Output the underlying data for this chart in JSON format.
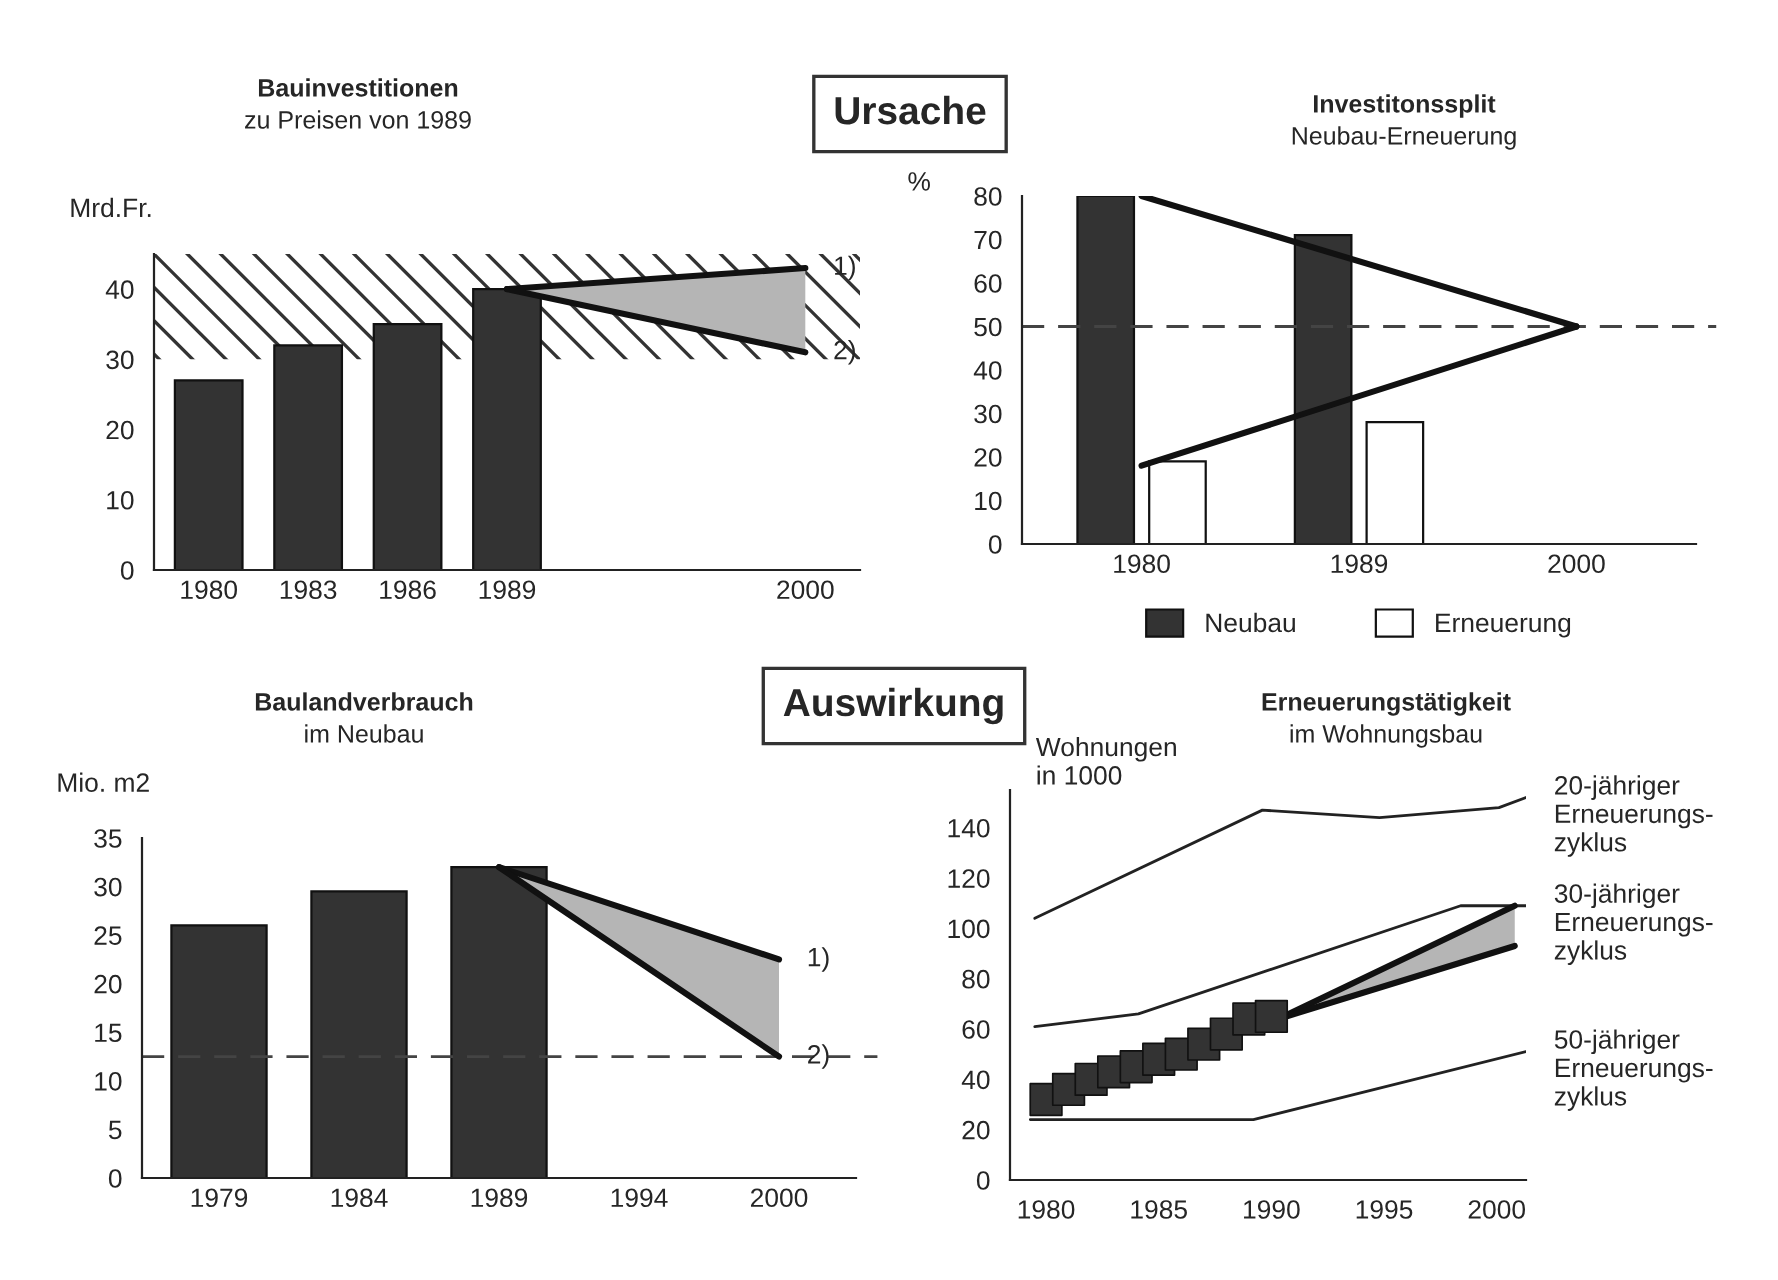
{
  "chart_data": [
    {
      "type": "bar",
      "title": "Bauinvestitionen",
      "subtitle": "zu Preisen von 1989",
      "ylabel": "Mrd.Fr.",
      "annotations": [
        "Ursache"
      ],
      "categories": [
        "1980",
        "1983",
        "1986",
        "1989",
        null,
        null,
        "2000"
      ],
      "series": [
        {
          "type": "bar",
          "color": "#333333",
          "values": [
            27,
            32,
            35,
            40,
            null,
            null,
            null
          ]
        },
        {
          "type": "line",
          "name": "1)",
          "color": "#111111",
          "values": [
            null,
            null,
            null,
            40,
            null,
            null,
            43
          ],
          "lower": [
            null,
            null,
            null,
            40,
            null,
            null,
            31
          ],
          "upper": [
            null,
            null,
            null,
            40,
            null,
            null,
            43
          ]
        },
        {
          "type": "line",
          "name": "2)",
          "color": "#111111",
          "values": [
            null,
            null,
            null,
            40,
            null,
            null,
            31
          ]
        }
      ],
      "bands": [
        {
          "axis": "y",
          "from": 30,
          "to": 45,
          "color": "#333333"
        }
      ],
      "ylim": [
        0,
        45
      ],
      "yticks": [
        0,
        10,
        20,
        30,
        40
      ]
    },
    {
      "type": "bar",
      "title": "Investitonssplit",
      "subtitle": "Neubau-Erneuerung",
      "ylabel": "%",
      "categories": [
        "1980",
        "1989",
        "2000"
      ],
      "series": [
        {
          "type": "bar",
          "name": "Neubau",
          "color": "#333333",
          "values": [
            80,
            71,
            null
          ]
        },
        {
          "type": "bar",
          "name": "Erneuerung",
          "color": "#ffffff",
          "values": [
            19,
            28,
            null
          ]
        },
        {
          "type": "line",
          "color": "#111111",
          "values": [
            80,
            null,
            50
          ]
        },
        {
          "type": "line",
          "color": "#111111",
          "values": [
            18,
            null,
            50
          ]
        }
      ],
      "ref_lines": [
        {
          "axis": "y",
          "value": 50,
          "color": "#444444",
          "line_style": "dashed"
        }
      ],
      "legend": "bottom",
      "ylim": [
        0,
        80
      ],
      "yticks": [
        0,
        10,
        20,
        30,
        40,
        50,
        60,
        70,
        80
      ]
    },
    {
      "type": "bar",
      "title": "Baulandverbrauch",
      "subtitle": "im Neubau",
      "ylabel": "Mio. m2",
      "annotations": [
        "Auswirkung"
      ],
      "categories": [
        "1979",
        "1984",
        "1989",
        "1994",
        "2000"
      ],
      "series": [
        {
          "type": "bar",
          "color": "#333333",
          "values": [
            26,
            29.5,
            32,
            null,
            null
          ]
        },
        {
          "type": "line",
          "name": "1)",
          "color": "#111111",
          "values": [
            null,
            null,
            32,
            null,
            22.5
          ],
          "lower": [
            null,
            null,
            32,
            null,
            12.5
          ],
          "upper": [
            null,
            null,
            32,
            null,
            22.5
          ]
        },
        {
          "type": "line",
          "name": "2)",
          "color": "#111111",
          "values": [
            null,
            null,
            32,
            null,
            12.5
          ]
        }
      ],
      "ref_lines": [
        {
          "axis": "y",
          "value": 12.5,
          "color": "#444444",
          "line_style": "dashed"
        }
      ],
      "ylim": [
        0,
        35
      ],
      "yticks": [
        0,
        5,
        10,
        15,
        20,
        25,
        30,
        35
      ]
    },
    {
      "type": "line",
      "title": "Erneuerungstätigkeit",
      "subtitle": "im Wohnungsbau",
      "ylabel": "Wohnungen\nin 1000",
      "series": [
        {
          "name": "20-jähriger\nErneuerungs-\nzyklus",
          "color": "#222222",
          "x": [
            1979.5,
            1989.6,
            1994.8,
            2000.1,
            2001.3
          ],
          "values": [
            104,
            147,
            144,
            148,
            152
          ]
        },
        {
          "name": "30-jähriger\nErneuerungs-\nzyklus",
          "color": "#222222",
          "x": [
            1979.5,
            1984.1,
            1998.4,
            2001.3
          ],
          "values": [
            61,
            66,
            109,
            109
          ]
        },
        {
          "name": "50-jähriger\nErneuerungs-\nzyklus",
          "color": "#222222",
          "x": [
            1979.3,
            1989.2,
            2001.3
          ],
          "values": [
            24,
            24,
            51
          ]
        },
        {
          "type": "scatter",
          "marker": "square",
          "color": "#333333",
          "x": [
            1980,
            1981,
            1982,
            1983,
            1984,
            1985,
            1986,
            1987,
            1988,
            1989,
            1990
          ],
          "values": [
            32,
            36,
            40,
            43,
            45,
            48,
            50,
            54,
            58,
            64,
            65
          ]
        },
        {
          "color": "#111111",
          "x": [
            1990.3,
            2000.8
          ],
          "values": [
            64,
            109
          ],
          "lower": [
            64,
            93
          ],
          "upper": [
            64,
            109
          ]
        },
        {
          "color": "#111111",
          "x": [
            1990.3,
            2000.8
          ],
          "values": [
            64,
            93
          ]
        }
      ],
      "xlim": [
        1978.4,
        2001.3
      ],
      "xticks": [
        1980,
        1985,
        1990,
        1995,
        2000
      ],
      "ylim": [
        0,
        155
      ],
      "yticks": [
        0,
        20,
        40,
        60,
        80,
        100,
        120,
        140
      ]
    }
  ]
}
